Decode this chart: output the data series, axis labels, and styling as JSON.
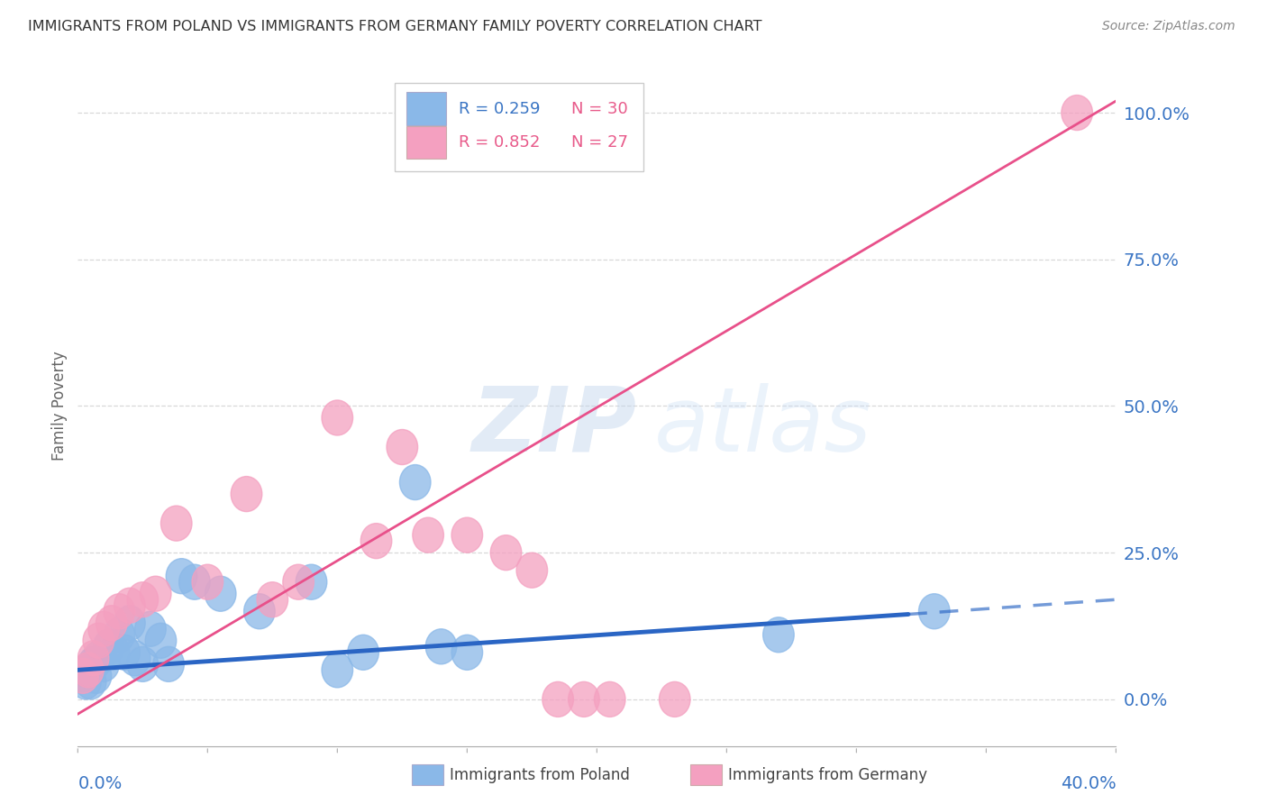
{
  "title": "IMMIGRANTS FROM POLAND VS IMMIGRANTS FROM GERMANY FAMILY POVERTY CORRELATION CHART",
  "source": "Source: ZipAtlas.com",
  "ylabel": "Family Poverty",
  "ytick_values": [
    0,
    25,
    50,
    75,
    100
  ],
  "xlim": [
    0,
    40
  ],
  "ylim": [
    -8,
    108
  ],
  "poland_color": "#8ab8e8",
  "germany_color": "#f4a0c0",
  "poland_line_color": "#2a65c4",
  "germany_line_color": "#e8508a",
  "poland_scatter_x": [
    0.2,
    0.3,
    0.4,
    0.5,
    0.6,
    0.7,
    0.8,
    1.0,
    1.2,
    1.4,
    1.6,
    1.8,
    2.0,
    2.2,
    2.5,
    2.8,
    3.2,
    3.5,
    4.0,
    4.5,
    5.5,
    7.0,
    9.0,
    10.0,
    11.0,
    13.0,
    14.0,
    15.0,
    27.0,
    33.0
  ],
  "poland_scatter_y": [
    4,
    3,
    5,
    3,
    6,
    4,
    7,
    6,
    9,
    8,
    11,
    8,
    13,
    7,
    6,
    12,
    10,
    6,
    21,
    20,
    18,
    15,
    20,
    5,
    8,
    37,
    9,
    8,
    11,
    15
  ],
  "germany_scatter_x": [
    0.2,
    0.4,
    0.6,
    0.8,
    1.0,
    1.3,
    1.6,
    2.0,
    2.5,
    3.0,
    3.8,
    5.0,
    6.5,
    7.5,
    8.5,
    10.0,
    11.5,
    12.5,
    13.5,
    15.0,
    16.5,
    17.5,
    18.5,
    19.5,
    20.5,
    23.0,
    38.5
  ],
  "germany_scatter_y": [
    4,
    5,
    7,
    10,
    12,
    13,
    15,
    16,
    17,
    18,
    30,
    20,
    35,
    17,
    20,
    48,
    27,
    43,
    28,
    28,
    25,
    22,
    0,
    0,
    0,
    0,
    100
  ],
  "poland_line_x0": 0,
  "poland_line_y0": 5.0,
  "poland_line_x1": 32.0,
  "poland_line_y1": 14.5,
  "poland_dash_x0": 32.0,
  "poland_dash_y0": 14.5,
  "poland_dash_x1": 40.0,
  "poland_dash_y1": 17.0,
  "germany_line_x0": 0,
  "germany_line_y0": -2.5,
  "germany_line_x1": 40,
  "germany_line_y1": 102,
  "watermark_line1": "ZIP",
  "watermark_line2": "atlas",
  "background_color": "#ffffff",
  "grid_color": "#d8d8d8",
  "legend_R_poland": "R = 0.259",
  "legend_N_poland": "N = 30",
  "legend_R_germany": "R = 0.852",
  "legend_N_germany": "N = 27",
  "bottom_legend_poland": "Immigrants from Poland",
  "bottom_legend_germany": "Immigrants from Germany"
}
